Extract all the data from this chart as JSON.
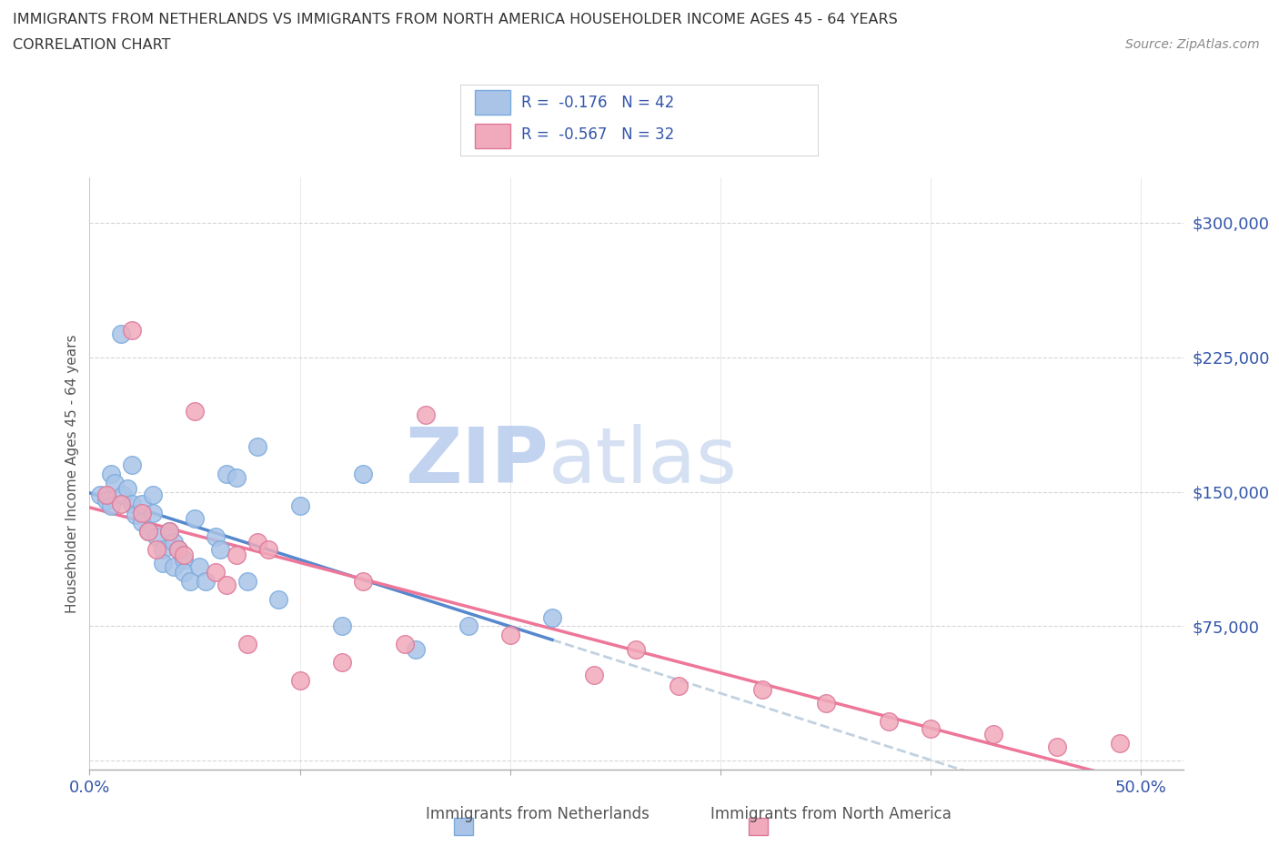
{
  "title_line1": "IMMIGRANTS FROM NETHERLANDS VS IMMIGRANTS FROM NORTH AMERICA HOUSEHOLDER INCOME AGES 45 - 64 YEARS",
  "title_line2": "CORRELATION CHART",
  "source_text": "Source: ZipAtlas.com",
  "ylabel": "Householder Income Ages 45 - 64 years",
  "xlim": [
    0.0,
    0.52
  ],
  "ylim": [
    -5000,
    325000
  ],
  "yticks": [
    0,
    75000,
    150000,
    225000,
    300000
  ],
  "ytick_labels": [
    "",
    "$75,000",
    "$150,000",
    "$225,000",
    "$300,000"
  ],
  "xticks": [
    0.0,
    0.1,
    0.2,
    0.3,
    0.4,
    0.5
  ],
  "xtick_labels": [
    "0.0%",
    "",
    "",
    "",
    "",
    "50.0%"
  ],
  "background_color": "#ffffff",
  "grid_color": "#cccccc",
  "netherlands_color": "#aac4e8",
  "north_america_color": "#f0aabb",
  "netherlands_edge_color": "#7aabdd",
  "north_america_edge_color": "#dd7799",
  "netherlands_line_color": "#5588cc",
  "north_america_line_color": "#ee7799",
  "dashed_line_color": "#bbccdd",
  "watermark_zip_color": "#c8d8ee",
  "watermark_atlas_color": "#c8d4e8",
  "legend_text_color": "#3355aa",
  "r_netherlands": -0.176,
  "n_netherlands": 42,
  "r_north_america": -0.567,
  "n_north_america": 32,
  "netherlands_x": [
    0.005,
    0.008,
    0.01,
    0.01,
    0.012,
    0.015,
    0.016,
    0.018,
    0.02,
    0.02,
    0.022,
    0.025,
    0.025,
    0.028,
    0.03,
    0.03,
    0.032,
    0.035,
    0.035,
    0.038,
    0.04,
    0.04,
    0.042,
    0.045,
    0.045,
    0.048,
    0.05,
    0.052,
    0.055,
    0.06,
    0.062,
    0.065,
    0.07,
    0.075,
    0.08,
    0.09,
    0.1,
    0.12,
    0.13,
    0.155,
    0.18,
    0.22
  ],
  "netherlands_y": [
    148000,
    145000,
    160000,
    142000,
    155000,
    238000,
    148000,
    152000,
    165000,
    143000,
    137000,
    143000,
    133000,
    128000,
    148000,
    138000,
    125000,
    118000,
    110000,
    128000,
    122000,
    108000,
    118000,
    112000,
    105000,
    100000,
    135000,
    108000,
    100000,
    125000,
    118000,
    160000,
    158000,
    100000,
    175000,
    90000,
    142000,
    75000,
    160000,
    62000,
    75000,
    80000
  ],
  "north_america_x": [
    0.008,
    0.015,
    0.02,
    0.025,
    0.028,
    0.032,
    0.038,
    0.042,
    0.045,
    0.05,
    0.06,
    0.065,
    0.07,
    0.075,
    0.08,
    0.085,
    0.1,
    0.12,
    0.13,
    0.15,
    0.16,
    0.2,
    0.24,
    0.26,
    0.28,
    0.32,
    0.35,
    0.38,
    0.4,
    0.43,
    0.46,
    0.49
  ],
  "north_america_y": [
    148000,
    143000,
    240000,
    138000,
    128000,
    118000,
    128000,
    118000,
    115000,
    195000,
    105000,
    98000,
    115000,
    65000,
    122000,
    118000,
    45000,
    55000,
    100000,
    65000,
    193000,
    70000,
    48000,
    62000,
    42000,
    40000,
    32000,
    22000,
    18000,
    15000,
    8000,
    10000
  ]
}
